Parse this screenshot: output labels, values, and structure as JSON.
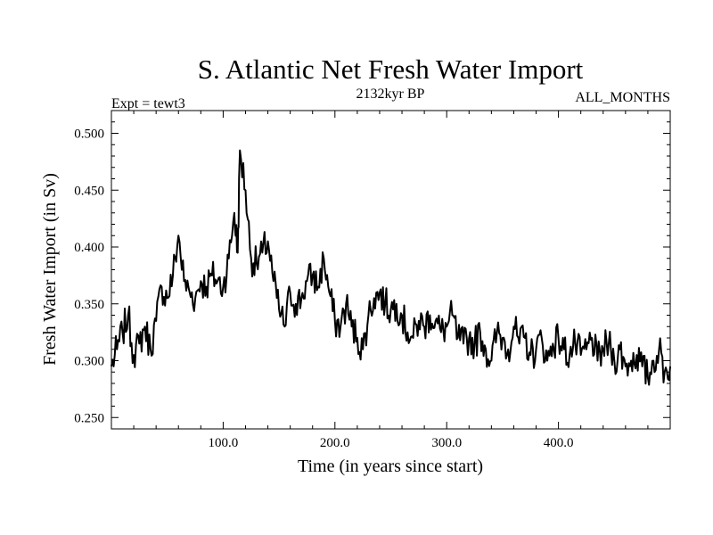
{
  "chart_data": {
    "type": "line",
    "title": "S. Atlantic Net Fresh Water Import",
    "subtitle_left": "Expt = tewt3",
    "subtitle_center": "2132kyr BP",
    "subtitle_right": "ALL_MONTHS",
    "xlabel": "Time (in years since start)",
    "ylabel": "Fresh Water Import (in Sv)",
    "xlim": [
      0,
      500
    ],
    "ylim": [
      0.24,
      0.52
    ],
    "x_ticks": [
      {
        "value": 100,
        "label": "100.0"
      },
      {
        "value": 200,
        "label": "200.0"
      },
      {
        "value": 300,
        "label": "300.0"
      },
      {
        "value": 400,
        "label": "400.0"
      }
    ],
    "y_ticks": [
      {
        "value": 0.25,
        "label": "0.250"
      },
      {
        "value": 0.3,
        "label": "0.300"
      },
      {
        "value": 0.35,
        "label": "0.350"
      },
      {
        "value": 0.4,
        "label": "0.400"
      },
      {
        "value": 0.45,
        "label": "0.450"
      },
      {
        "value": 0.5,
        "label": "0.500"
      }
    ],
    "series": [
      {
        "name": "Fresh Water Import",
        "x": [
          0,
          5,
          10,
          15,
          20,
          25,
          30,
          35,
          40,
          45,
          50,
          55,
          60,
          65,
          70,
          75,
          80,
          85,
          90,
          95,
          100,
          105,
          110,
          113,
          115,
          120,
          125,
          130,
          135,
          140,
          145,
          150,
          155,
          160,
          165,
          170,
          175,
          180,
          185,
          190,
          195,
          200,
          205,
          210,
          215,
          220,
          225,
          230,
          235,
          240,
          245,
          250,
          255,
          260,
          265,
          270,
          275,
          280,
          285,
          290,
          295,
          300,
          305,
          310,
          315,
          320,
          325,
          330,
          335,
          340,
          345,
          350,
          355,
          360,
          365,
          370,
          375,
          380,
          385,
          390,
          395,
          400,
          405,
          410,
          415,
          420,
          425,
          430,
          435,
          440,
          445,
          450,
          455,
          460,
          465,
          470,
          475,
          480,
          485,
          490,
          495,
          500
        ],
        "values": [
          0.295,
          0.31,
          0.325,
          0.34,
          0.305,
          0.315,
          0.33,
          0.31,
          0.335,
          0.365,
          0.355,
          0.375,
          0.41,
          0.37,
          0.36,
          0.355,
          0.37,
          0.365,
          0.375,
          0.37,
          0.365,
          0.39,
          0.43,
          0.395,
          0.485,
          0.45,
          0.39,
          0.385,
          0.395,
          0.405,
          0.37,
          0.345,
          0.33,
          0.36,
          0.35,
          0.355,
          0.37,
          0.375,
          0.365,
          0.39,
          0.36,
          0.335,
          0.33,
          0.35,
          0.33,
          0.32,
          0.31,
          0.34,
          0.355,
          0.36,
          0.35,
          0.345,
          0.35,
          0.34,
          0.325,
          0.32,
          0.335,
          0.33,
          0.34,
          0.335,
          0.325,
          0.33,
          0.34,
          0.32,
          0.315,
          0.32,
          0.315,
          0.325,
          0.31,
          0.3,
          0.325,
          0.32,
          0.31,
          0.33,
          0.315,
          0.32,
          0.305,
          0.31,
          0.32,
          0.3,
          0.315,
          0.32,
          0.31,
          0.305,
          0.315,
          0.305,
          0.31,
          0.32,
          0.3,
          0.31,
          0.315,
          0.3,
          0.31,
          0.295,
          0.3,
          0.305,
          0.295,
          0.285,
          0.3,
          0.31,
          0.29,
          0.295
        ]
      }
    ]
  }
}
